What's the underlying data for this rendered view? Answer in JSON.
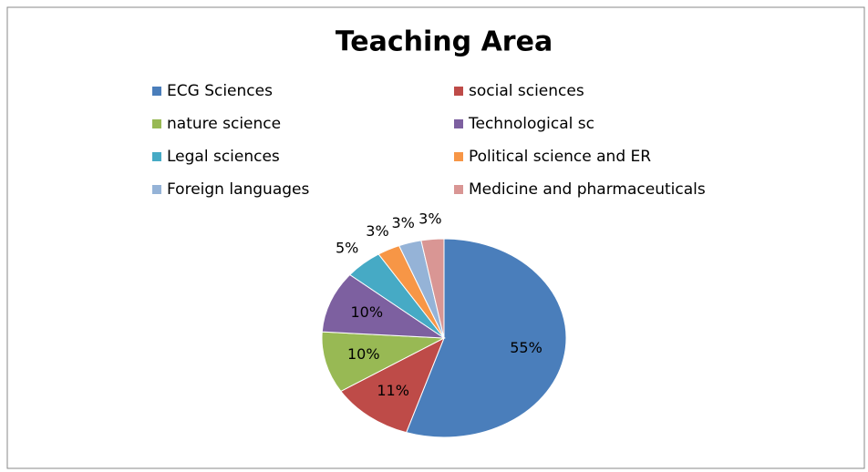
{
  "chart_data": {
    "type": "pie",
    "title": "Teaching Area",
    "categories": [
      "ECG Sciences",
      "social sciences",
      "nature science",
      "Technological sc",
      "Legal sciences",
      "Political science and ER",
      "Foreign languages",
      "Medicine and pharmaceuticals"
    ],
    "values": [
      55,
      11,
      10,
      10,
      5,
      3,
      3,
      3
    ],
    "value_labels": [
      "55%",
      "11%",
      "10%",
      "10%",
      "5%",
      "3%",
      "3%",
      "3%"
    ],
    "colors": [
      "#4a7ebb",
      "#be4b48",
      "#98b954",
      "#7d60a0",
      "#46aac5",
      "#f79646",
      "#95b3d7",
      "#d99694"
    ],
    "legend": "top"
  }
}
